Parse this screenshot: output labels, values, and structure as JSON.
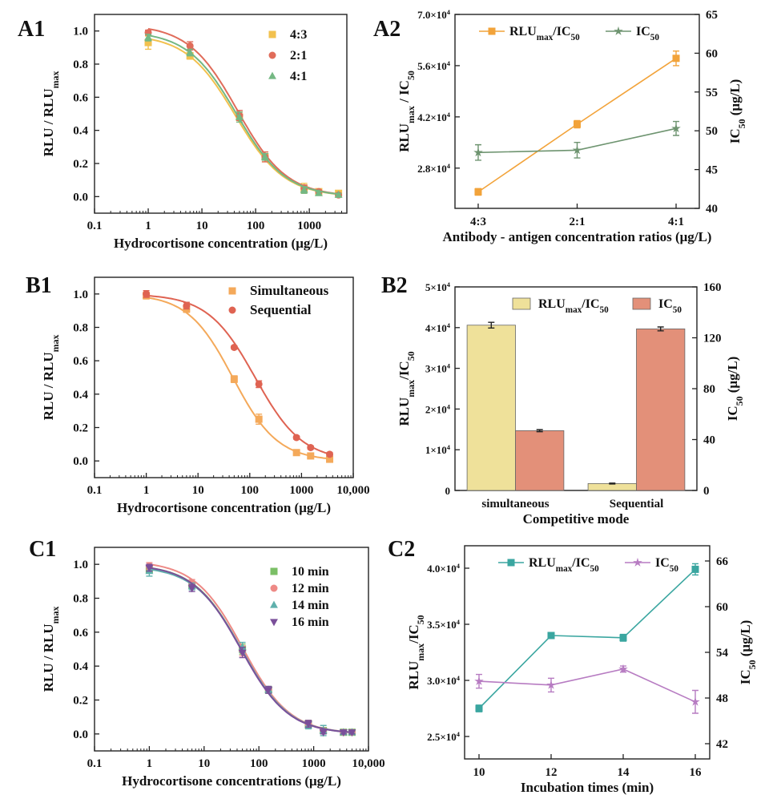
{
  "chart_data": [
    {
      "id": "A1",
      "panel_label": "A1",
      "type": "line",
      "xscale": "log",
      "xlim": [
        0.1,
        5000
      ],
      "ylim": [
        -0.1,
        1.1
      ],
      "xticks": [
        {
          "v": 0.1,
          "t": "0.1"
        },
        {
          "v": 1,
          "t": "1"
        },
        {
          "v": 10,
          "t": "10"
        },
        {
          "v": 100,
          "t": "100"
        },
        {
          "v": 1000,
          "t": "1000"
        }
      ],
      "yticks": [
        {
          "v": 0,
          "t": "0.0"
        },
        {
          "v": 0.2,
          "t": "0.2"
        },
        {
          "v": 0.4,
          "t": "0.4"
        },
        {
          "v": 0.6,
          "t": "0.6"
        },
        {
          "v": 0.8,
          "t": "0.8"
        },
        {
          "v": 1,
          "t": "1.0"
        }
      ],
      "xlabel": "Hydrocortisone concentration (μg/L)",
      "ylabel": {
        "main": "RLU / RLU",
        "sub": "max"
      },
      "legend_position": "top-right",
      "x": [
        1,
        6,
        50,
        150,
        800,
        1500,
        3500
      ],
      "series": [
        {
          "name": "4:3",
          "color": "#f2c14e",
          "marker": "square",
          "values": [
            0.93,
            0.85,
            0.48,
            0.24,
            0.05,
            0.03,
            0.02
          ],
          "errors": [
            0.04,
            0.02,
            0.03,
            0.03,
            0.03,
            0.01,
            0.01
          ],
          "fit": {
            "top": 0.98,
            "bottom": 0.0,
            "ic50": 42,
            "slope": 0.95
          }
        },
        {
          "name": "2:1",
          "color": "#e06c5a",
          "marker": "circle",
          "values": [
            0.99,
            0.91,
            0.49,
            0.24,
            0.05,
            0.03,
            0.01
          ],
          "errors": [
            0.015,
            0.025,
            0.03,
            0.03,
            0.02,
            0.01,
            0.01
          ],
          "fit": {
            "top": 1.04,
            "bottom": 0.0,
            "ic50": 46,
            "slope": 0.95
          }
        },
        {
          "name": "4:1",
          "color": "#74b883",
          "marker": "triangle",
          "values": [
            0.96,
            0.87,
            0.48,
            0.24,
            0.04,
            0.02,
            0.01
          ],
          "errors": [
            0.02,
            0.02,
            0.03,
            0.02,
            0.02,
            0.01,
            0.01
          ],
          "fit": {
            "top": 1.0,
            "bottom": 0.0,
            "ic50": 44,
            "slope": 0.95
          }
        }
      ]
    },
    {
      "id": "A2",
      "panel_label": "A2",
      "type": "line",
      "categories": [
        "4:3",
        "2:1",
        "4:1"
      ],
      "xlabel": "Antibody - antigen concentration ratios (μg/L)",
      "ylabel": {
        "main": "RLU",
        "sub": "max",
        "rest": " / IC",
        "sub2": "50"
      },
      "ylim": [
        17000,
        70000
      ],
      "yticks": [
        {
          "v": 28000,
          "m": "2.8×10",
          "e": "4"
        },
        {
          "v": 42000,
          "m": "4.2×10",
          "e": "4"
        },
        {
          "v": 56000,
          "m": "5.6×10",
          "e": "4"
        },
        {
          "v": 70000,
          "m": "7.0×10",
          "e": "4"
        }
      ],
      "y2label": {
        "main": "IC",
        "sub": "50",
        "rest": " (μg/L)"
      },
      "y2lim": [
        40,
        65
      ],
      "y2ticks": [
        {
          "v": 40,
          "t": "40"
        },
        {
          "v": 45,
          "t": "45"
        },
        {
          "v": 50,
          "t": "50"
        },
        {
          "v": 55,
          "t": "55"
        },
        {
          "v": 60,
          "t": "60"
        },
        {
          "v": 65,
          "t": "65"
        }
      ],
      "legend_position": "top",
      "series": [
        {
          "name": "RLU",
          "name_sub": "max",
          "name_rest": "/IC",
          "name_sub2": "50",
          "axis": "left",
          "color": "#f2a33a",
          "marker": "square",
          "values": [
            21500,
            40000,
            58000
          ],
          "errors": [
            900,
            1000,
            2000
          ]
        },
        {
          "name": "IC",
          "name_sub": "50",
          "axis": "right",
          "color": "#6e9470",
          "marker": "star",
          "values": [
            47.2,
            47.5,
            50.3
          ],
          "errors": [
            1.0,
            1.0,
            0.9
          ]
        }
      ]
    },
    {
      "id": "B1",
      "panel_label": "B1",
      "type": "line",
      "xscale": "log",
      "xlim": [
        0.1,
        10000
      ],
      "ylim": [
        -0.1,
        1.1
      ],
      "xticks": [
        {
          "v": 0.1,
          "t": "0.1"
        },
        {
          "v": 1,
          "t": "1"
        },
        {
          "v": 10,
          "t": "10"
        },
        {
          "v": 100,
          "t": "100"
        },
        {
          "v": 1000,
          "t": "1000"
        },
        {
          "v": 10000,
          "t": "10,000"
        }
      ],
      "yticks": [
        {
          "v": 0,
          "t": "0.0"
        },
        {
          "v": 0.2,
          "t": "0.2"
        },
        {
          "v": 0.4,
          "t": "0.4"
        },
        {
          "v": 0.6,
          "t": "0.6"
        },
        {
          "v": 0.8,
          "t": "0.8"
        },
        {
          "v": 1,
          "t": "1.0"
        }
      ],
      "xlabel": "Hydrocortisone concentration (μg/L)",
      "ylabel": {
        "main": "RLU / RLU",
        "sub": "max"
      },
      "legend_position": "top-right",
      "x": [
        1,
        6,
        50,
        150,
        800,
        1500,
        3500
      ],
      "series": [
        {
          "name": "Simultaneous",
          "color": "#f4a95a",
          "marker": "square",
          "values": [
            0.99,
            0.91,
            0.49,
            0.25,
            0.05,
            0.03,
            0.01
          ],
          "errors": [
            0.02,
            0.02,
            0.02,
            0.03,
            0.01,
            0.01,
            0.01
          ],
          "fit": {
            "top": 1.0,
            "bottom": 0.0,
            "ic50": 47,
            "slope": 1.0
          }
        },
        {
          "name": "Sequential",
          "color": "#df6352",
          "marker": "circle",
          "values": [
            1.0,
            0.93,
            0.68,
            0.46,
            0.14,
            0.08,
            0.04
          ],
          "errors": [
            0.02,
            0.02,
            0.01,
            0.02,
            0.01,
            0.01,
            0.01
          ],
          "fit": {
            "top": 1.0,
            "bottom": 0.0,
            "ic50": 127,
            "slope": 0.95
          }
        }
      ]
    },
    {
      "id": "B2",
      "panel_label": "B2",
      "type": "bar",
      "categories": [
        "simultaneous",
        "Sequential"
      ],
      "xlabel": "Competitive mode",
      "ylabel": {
        "main": "RLU",
        "sub": "max",
        "rest": "/IC",
        "sub2": "50"
      },
      "ylim": [
        0,
        50000
      ],
      "yticks": [
        {
          "v": 0,
          "m": "0",
          "e": ""
        },
        {
          "v": 10000,
          "m": "1×10",
          "e": "4"
        },
        {
          "v": 20000,
          "m": "2×10",
          "e": "4"
        },
        {
          "v": 30000,
          "m": "3×10",
          "e": "4"
        },
        {
          "v": 40000,
          "m": "4×10",
          "e": "4"
        },
        {
          "v": 50000,
          "m": "5×10",
          "e": "4"
        }
      ],
      "y2label": {
        "main": "IC",
        "sub": "50",
        "rest": " (μg/L)"
      },
      "y2lim": [
        0,
        160
      ],
      "y2ticks": [
        {
          "v": 0,
          "t": "0"
        },
        {
          "v": 40,
          "t": "40"
        },
        {
          "v": 80,
          "t": "80"
        },
        {
          "v": 120,
          "t": "120"
        },
        {
          "v": 160,
          "t": "160"
        }
      ],
      "legend_position": "top",
      "series": [
        {
          "name": "RLU",
          "name_sub": "max",
          "name_rest": "/IC",
          "name_sub2": "50",
          "axis": "left",
          "color": "#efe19a",
          "values": [
            40600,
            1700
          ],
          "errors": [
            700,
            100
          ]
        },
        {
          "name": "IC",
          "name_sub": "50",
          "axis": "right",
          "color": "#e39079",
          "values": [
            47,
            127
          ],
          "errors": [
            0.8,
            1.5
          ]
        }
      ]
    },
    {
      "id": "C1",
      "panel_label": "C1",
      "type": "line",
      "xscale": "log",
      "xlim": [
        0.1,
        10000
      ],
      "ylim": [
        -0.1,
        1.1
      ],
      "xticks": [
        {
          "v": 0.1,
          "t": "0.1"
        },
        {
          "v": 1,
          "t": "1"
        },
        {
          "v": 10,
          "t": "10"
        },
        {
          "v": 100,
          "t": "100"
        },
        {
          "v": 1000,
          "t": "1000"
        },
        {
          "v": 10000,
          "t": "10,000"
        }
      ],
      "yticks": [
        {
          "v": 0,
          "t": "0.0"
        },
        {
          "v": 0.2,
          "t": "0.2"
        },
        {
          "v": 0.4,
          "t": "0.4"
        },
        {
          "v": 0.6,
          "t": "0.6"
        },
        {
          "v": 0.8,
          "t": "0.8"
        },
        {
          "v": 1,
          "t": "1.0"
        }
      ],
      "xlabel": "Hydrocortisone concentrations (μg/L)",
      "ylabel": {
        "main": "RLU / RLU",
        "sub": "max"
      },
      "legend_position": "top-right",
      "x": [
        1,
        6,
        50,
        150,
        800,
        1500,
        3500,
        5000
      ],
      "series": [
        {
          "name": "10 min",
          "color": "#7bbf66",
          "marker": "square",
          "values": [
            0.97,
            0.88,
            0.5,
            0.26,
            0.06,
            0.02,
            0.01,
            0.01
          ],
          "errors": [
            0.02,
            0.02,
            0.03,
            0.02,
            0.02,
            0.01,
            0.01,
            0.01
          ],
          "fit": {
            "top": 1.0,
            "bottom": 0.0,
            "ic50": 48,
            "slope": 1.0
          }
        },
        {
          "name": "12 min",
          "color": "#ee8a86",
          "marker": "circle",
          "values": [
            0.99,
            0.89,
            0.49,
            0.26,
            0.06,
            0.02,
            0.01,
            0.01
          ],
          "errors": [
            0.02,
            0.02,
            0.03,
            0.02,
            0.02,
            0.01,
            0.01,
            0.01
          ],
          "fit": {
            "top": 1.02,
            "bottom": 0.0,
            "ic50": 50,
            "slope": 1.0
          }
        },
        {
          "name": "14 min",
          "color": "#5fb0ac",
          "marker": "triangle",
          "values": [
            0.96,
            0.87,
            0.51,
            0.26,
            0.05,
            0.02,
            0.01,
            0.01
          ],
          "errors": [
            0.03,
            0.02,
            0.03,
            0.02,
            0.02,
            0.03,
            0.01,
            0.01
          ],
          "fit": {
            "top": 0.99,
            "bottom": 0.0,
            "ic50": 49,
            "slope": 1.0
          }
        },
        {
          "name": "16 min",
          "color": "#7a4f9a",
          "marker": "triangle-down",
          "values": [
            0.98,
            0.86,
            0.48,
            0.26,
            0.06,
            0.01,
            0.01,
            0.01
          ],
          "errors": [
            0.02,
            0.02,
            0.03,
            0.02,
            0.02,
            0.01,
            0.01,
            0.01
          ],
          "fit": {
            "top": 1.0,
            "bottom": 0.0,
            "ic50": 47,
            "slope": 1.0
          }
        }
      ]
    },
    {
      "id": "C2",
      "panel_label": "C2",
      "type": "line",
      "x": [
        10,
        12,
        14,
        16
      ],
      "xlim": [
        9.6,
        16.4
      ],
      "xticks": [
        {
          "v": 10,
          "t": "10"
        },
        {
          "v": 12,
          "t": "12"
        },
        {
          "v": 14,
          "t": "14"
        },
        {
          "v": 16,
          "t": "16"
        }
      ],
      "xlabel": "Incubation times (min)",
      "ylabel": {
        "main": "RLU",
        "sub": "max",
        "rest": "/IC",
        "sub2": "50"
      },
      "ylim": [
        23000,
        42000
      ],
      "yticks": [
        {
          "v": 25000,
          "m": "2.5×10",
          "e": "4"
        },
        {
          "v": 30000,
          "m": "3.0×10",
          "e": "4"
        },
        {
          "v": 35000,
          "m": "3.5×10",
          "e": "4"
        },
        {
          "v": 40000,
          "m": "4.0×10",
          "e": "4"
        }
      ],
      "y2label": {
        "main": "IC",
        "sub": "50",
        "rest": " (μg/L)"
      },
      "y2lim": [
        40,
        68
      ],
      "y2ticks": [
        {
          "v": 42,
          "t": "42"
        },
        {
          "v": 48,
          "t": "48"
        },
        {
          "v": 54,
          "t": "54"
        },
        {
          "v": 60,
          "t": "60"
        },
        {
          "v": 66,
          "t": "66"
        }
      ],
      "legend_position": "top",
      "series": [
        {
          "name": "RLU",
          "name_sub": "max",
          "name_rest": "/IC",
          "name_sub2": "50",
          "axis": "left",
          "color": "#3aa6a0",
          "marker": "square",
          "values": [
            27500,
            34000,
            33800,
            39900
          ],
          "errors": [
            300,
            200,
            300,
            500
          ]
        },
        {
          "name": "IC",
          "name_sub": "50",
          "axis": "right",
          "color": "#b77cc2",
          "marker": "star",
          "values": [
            50.2,
            49.7,
            51.8,
            47.5
          ],
          "errors": [
            0.9,
            0.9,
            0.4,
            1.5
          ]
        }
      ]
    }
  ]
}
